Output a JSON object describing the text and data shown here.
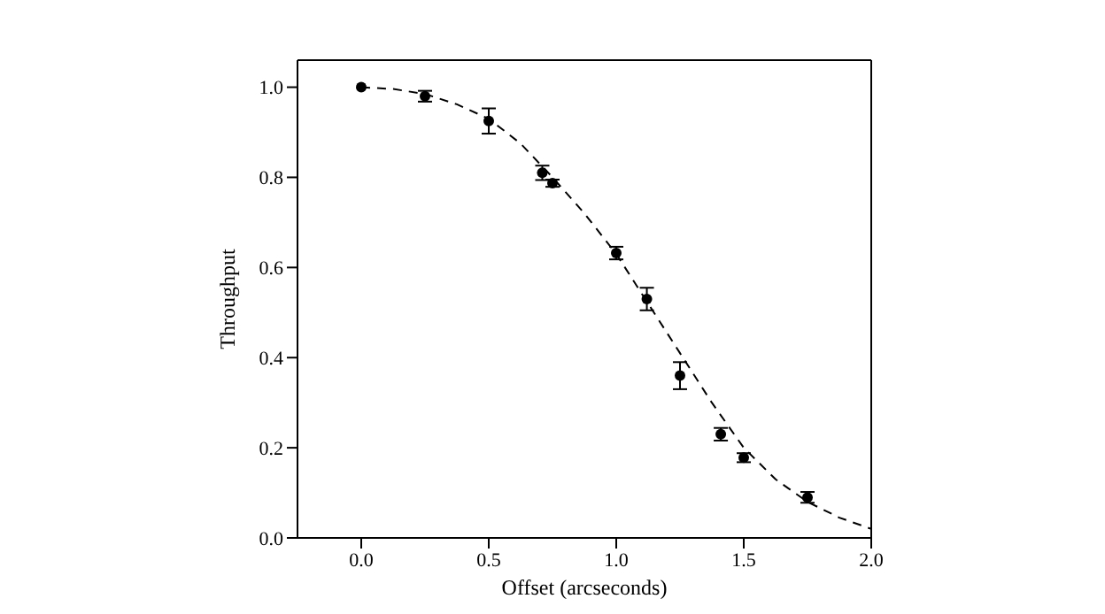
{
  "chart_data": {
    "type": "scatter",
    "xlabel": "Offset (arcseconds)",
    "ylabel": "Throughput",
    "xlim": [
      -0.25,
      2.0
    ],
    "xticks": [
      {
        "value": 0,
        "label": "0.0"
      },
      {
        "value": 0.5,
        "label": "0.5"
      },
      {
        "value": 1,
        "label": "1.0"
      },
      {
        "value": 1.5,
        "label": "1.5"
      },
      {
        "value": 2,
        "label": "2.0"
      }
    ],
    "ylim": [
      0,
      1.06
    ],
    "yticks": [
      {
        "value": 0,
        "label": "0.0"
      },
      {
        "value": 0.2,
        "label": "0.2"
      },
      {
        "value": 0.4,
        "label": "0.4"
      },
      {
        "value": 0.6,
        "label": "0.6"
      },
      {
        "value": 0.8,
        "label": "0.8"
      },
      {
        "value": 1,
        "label": "1.0"
      }
    ],
    "series": [
      {
        "color": "#000000",
        "marker": "circle",
        "x": [
          0,
          0.25,
          0.5,
          0.71,
          0.75,
          1.0,
          1.12,
          1.25,
          1.41,
          1.5,
          1.75
        ],
        "values": [
          1.0,
          0.98,
          0.925,
          0.81,
          0.787,
          0.632,
          0.53,
          0.36,
          0.23,
          0.178,
          0.09
        ],
        "errors": [
          null,
          0.012,
          0.028,
          0.016,
          0.008,
          0.014,
          0.025,
          0.03,
          0.014,
          0.01,
          0.012
        ]
      },
      {
        "type": "line",
        "color": "#000000",
        "line_style": "dashed",
        "marker": "none",
        "x": [
          0,
          0.125,
          0.25,
          0.375,
          0.5,
          0.625,
          0.75,
          0.875,
          1.0,
          1.125,
          1.25,
          1.375,
          1.5,
          1.625,
          1.75,
          1.875,
          2.0
        ],
        "values": [
          1.0,
          0.996,
          0.985,
          0.962,
          0.93,
          0.875,
          0.8,
          0.72,
          0.63,
          0.52,
          0.41,
          0.3,
          0.2,
          0.13,
          0.08,
          0.045,
          0.02
        ]
      }
    ]
  }
}
